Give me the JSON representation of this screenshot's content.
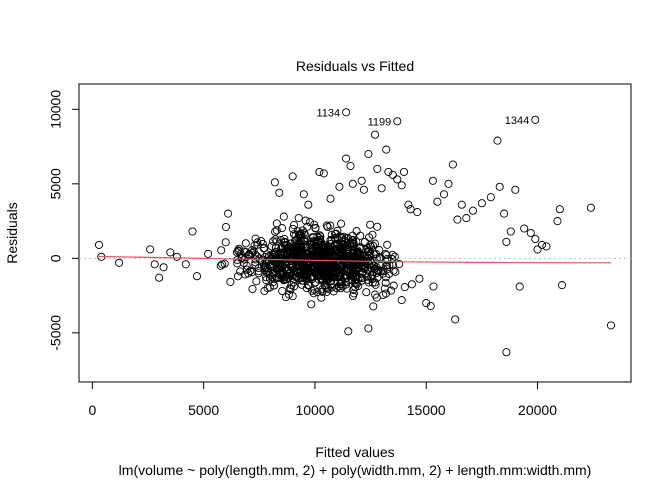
{
  "chart_data": {
    "type": "scatter",
    "title": "Residuals vs Fitted",
    "xlabel": "Fitted values",
    "xlabel_sub": "lm(volume ~ poly(length.mm, 2) + poly(width.mm, 2) + length.mm:width.mm)",
    "ylabel": "Residuals",
    "xlim": [
      -600,
      24200
    ],
    "ylim": [
      -8300,
      11700
    ],
    "xticks": [
      0,
      5000,
      10000,
      15000,
      20000
    ],
    "yticks": [
      -5000,
      0,
      5000,
      10000
    ],
    "grid": false,
    "zero_line": {
      "y": 0,
      "style": "dotted",
      "color": "#bebebe"
    },
    "point_style": {
      "shape": "open-circle",
      "color": "#000000"
    },
    "labeled_points": [
      {
        "label": "1134",
        "x": 11400,
        "y": 9800
      },
      {
        "label": "1199",
        "x": 13700,
        "y": 9200
      },
      {
        "label": "1344",
        "x": 19900,
        "y": 9300
      }
    ],
    "smoother": {
      "color": "#df536b",
      "x": [
        300,
        2000,
        4000,
        6000,
        8000,
        10000,
        12000,
        14000,
        16000,
        18000,
        20000,
        22000,
        23300
      ],
      "y": [
        120,
        80,
        20,
        -30,
        -80,
        -140,
        -190,
        -230,
        -260,
        -280,
        -290,
        -300,
        -300
      ]
    },
    "series": [
      {
        "x": [
          300,
          400,
          1200,
          2600,
          2800,
          3000,
          3200,
          3500,
          3800,
          4200,
          4500,
          4700,
          5200,
          6000,
          6100,
          8200,
          8400,
          8600,
          9000,
          9500,
          9700,
          10200,
          10400,
          10700,
          11100,
          11400,
          11600,
          11700,
          12100,
          12200,
          12400,
          12700,
          12800,
          13000,
          13200,
          13300,
          13500,
          13700,
          13900,
          14000,
          14200,
          14300,
          14600,
          15000,
          15300,
          15500,
          15800,
          16000,
          16200,
          16400,
          16600,
          16800,
          17100,
          17500,
          17900,
          18200,
          18300,
          18500,
          18600,
          18800,
          19000,
          19200,
          19400,
          19700,
          19900,
          20000,
          20200,
          20400,
          20900,
          21000,
          21100,
          22400,
          23300,
          11500,
          16300,
          18600,
          12400,
          8700,
          13900,
          15200
        ],
        "y": [
          900,
          100,
          -300,
          600,
          -400,
          -1300,
          -600,
          400,
          100,
          -400,
          1800,
          -1200,
          300,
          2100,
          3000,
          5100,
          4400,
          2800,
          5500,
          4300,
          3600,
          5800,
          5700,
          4000,
          4800,
          6700,
          6200,
          5000,
          5200,
          4600,
          7000,
          8300,
          6000,
          4700,
          7300,
          5800,
          5600,
          5300,
          4900,
          5800,
          3600,
          3300,
          3100,
          -3000,
          5200,
          3800,
          4300,
          5000,
          6300,
          2600,
          3600,
          2700,
          3200,
          3700,
          4100,
          7900,
          4800,
          3000,
          1100,
          1800,
          4600,
          -1900,
          2000,
          1700,
          1300,
          600,
          900,
          800,
          2500,
          3300,
          -1800,
          3400,
          -4500,
          -4900,
          -4100,
          -6300,
          -4700,
          -2600,
          -2800,
          -3200
        ],
        "note": "representative subset plus a dense cloud of points concentrated around x 7000-15000, residuals -3000 to 3000"
      }
    ]
  }
}
